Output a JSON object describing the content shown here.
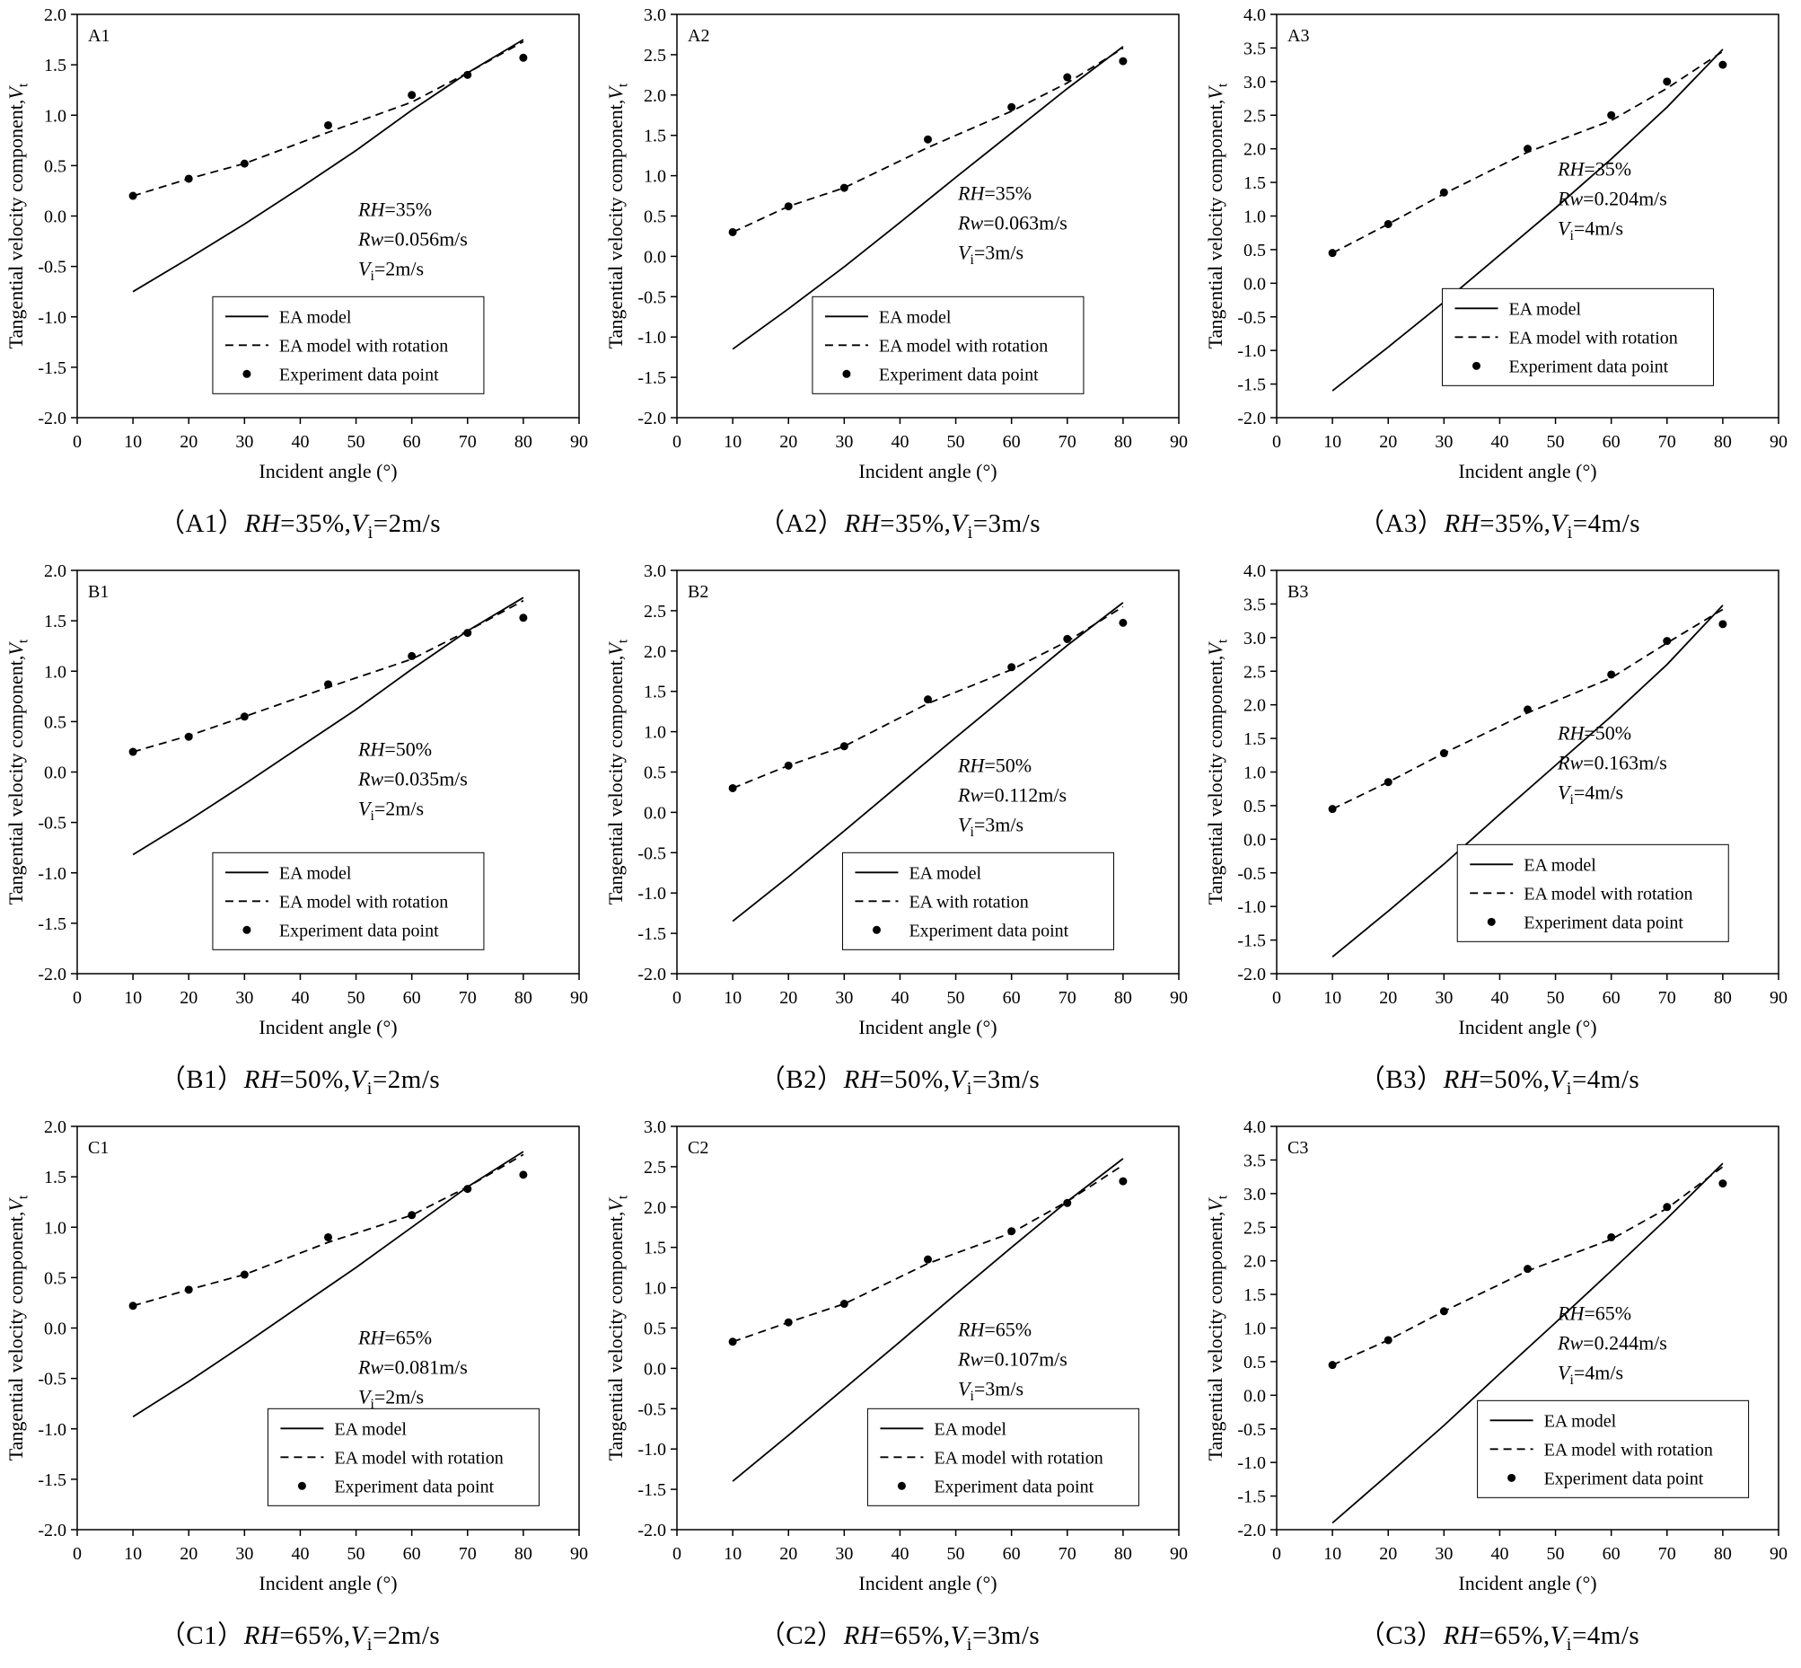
{
  "chart_data": [
    {
      "type": "line+scatter",
      "panel": "A1",
      "caption": "（A1）*RH*=35%,*V*~i~=2m/s",
      "xlabel": "Incident angle (°)",
      "ylabel": "Tangential velocity component,*V*~t~",
      "xlim": [
        0,
        90
      ],
      "xstep": 10,
      "ylim": [
        -2.0,
        2.0
      ],
      "ystep": 0.5,
      "annotation": [
        "*RH*=35%",
        "*Rw*=0.056m/s",
        "*V*~i~=2m/s"
      ],
      "ann_pos": {
        "x": 0.56,
        "y": 0.5
      },
      "legend_pos": {
        "x": 0.27,
        "y": 0.7
      },
      "legend": [
        {
          "style": "solid",
          "label": "EA model"
        },
        {
          "style": "dashed",
          "label": "EA model with rotation"
        },
        {
          "style": "dot",
          "label": "Experiment data point"
        }
      ],
      "series": [
        {
          "name": "EA model",
          "style": "solid",
          "x": [
            10,
            20,
            30,
            40,
            50,
            60,
            70,
            80
          ],
          "y": [
            -0.75,
            -0.42,
            -0.08,
            0.28,
            0.65,
            1.05,
            1.42,
            1.75
          ]
        },
        {
          "name": "EA model with rotation",
          "style": "dashed",
          "x": [
            10,
            20,
            30,
            45,
            60,
            70,
            80
          ],
          "y": [
            0.2,
            0.37,
            0.52,
            0.83,
            1.13,
            1.42,
            1.73
          ]
        },
        {
          "name": "Experiment data point",
          "style": "dot",
          "x": [
            10,
            20,
            30,
            45,
            60,
            70,
            80
          ],
          "y": [
            0.2,
            0.37,
            0.52,
            0.9,
            1.2,
            1.4,
            1.57
          ]
        }
      ]
    },
    {
      "type": "line+scatter",
      "panel": "A2",
      "caption": "（A2）*RH*=35%,*V*~i~=3m/s",
      "xlabel": "Incident angle (°)",
      "ylabel": "Tangential velocity component,*V*~t~",
      "xlim": [
        0,
        90
      ],
      "xstep": 10,
      "ylim": [
        -2.0,
        3.0
      ],
      "ystep": 0.5,
      "annotation": [
        "*RH*=35%",
        "*Rw*=0.063m/s",
        "*V*~i~=3m/s"
      ],
      "ann_pos": {
        "x": 0.56,
        "y": 0.46
      },
      "legend_pos": {
        "x": 0.27,
        "y": 0.7
      },
      "legend": [
        {
          "style": "solid",
          "label": "EA model"
        },
        {
          "style": "dashed",
          "label": "EA model with rotation"
        },
        {
          "style": "dot",
          "label": "Experiment data point"
        }
      ],
      "series": [
        {
          "name": "EA model",
          "style": "solid",
          "x": [
            10,
            20,
            30,
            40,
            50,
            60,
            70,
            80
          ],
          "y": [
            -1.15,
            -0.65,
            -0.13,
            0.42,
            0.98,
            1.53,
            2.08,
            2.6
          ]
        },
        {
          "name": "EA model with rotation",
          "style": "dashed",
          "x": [
            10,
            20,
            30,
            45,
            60,
            70,
            80
          ],
          "y": [
            0.3,
            0.62,
            0.85,
            1.35,
            1.8,
            2.15,
            2.58
          ]
        },
        {
          "name": "Experiment data point",
          "style": "dot",
          "x": [
            10,
            20,
            30,
            45,
            60,
            70,
            80
          ],
          "y": [
            0.3,
            0.62,
            0.85,
            1.45,
            1.85,
            2.22,
            2.42
          ]
        }
      ]
    },
    {
      "type": "line+scatter",
      "panel": "A3",
      "caption": "（A3）*RH*=35%,*V*~i~=4m/s",
      "xlabel": "Incident angle (°)",
      "ylabel": "Tangential velocity component,*V*~t~",
      "xlim": [
        0,
        90
      ],
      "xstep": 10,
      "ylim": [
        -2.0,
        4.0
      ],
      "ystep": 0.5,
      "annotation": [
        "*RH*=35%",
        "*Rw*=0.204m/s",
        "*V*~i~=4m/s"
      ],
      "ann_pos": {
        "x": 0.56,
        "y": 0.4
      },
      "legend_pos": {
        "x": 0.33,
        "y": 0.68
      },
      "legend": [
        {
          "style": "solid",
          "label": "EA model"
        },
        {
          "style": "dashed",
          "label": "EA model with rotation"
        },
        {
          "style": "dot",
          "label": "Experiment data point"
        }
      ],
      "series": [
        {
          "name": "EA model",
          "style": "solid",
          "x": [
            10,
            20,
            30,
            40,
            50,
            60,
            70,
            80
          ],
          "y": [
            -1.6,
            -0.95,
            -0.28,
            0.42,
            1.12,
            1.85,
            2.62,
            3.48
          ]
        },
        {
          "name": "EA model with rotation",
          "style": "dashed",
          "x": [
            10,
            20,
            30,
            45,
            60,
            70,
            80
          ],
          "y": [
            0.45,
            0.88,
            1.33,
            1.95,
            2.42,
            2.9,
            3.45
          ]
        },
        {
          "name": "Experiment data point",
          "style": "dot",
          "x": [
            10,
            20,
            30,
            45,
            60,
            70,
            80
          ],
          "y": [
            0.45,
            0.88,
            1.35,
            2.0,
            2.5,
            3.0,
            3.25
          ]
        }
      ]
    },
    {
      "type": "line+scatter",
      "panel": "B1",
      "caption": "（B1）*RH*=50%,*V*~i~=2m/s",
      "xlabel": "Incident angle (°)",
      "ylabel": "Tangential velocity component,*V*~t~",
      "xlim": [
        0,
        90
      ],
      "xstep": 10,
      "ylim": [
        -2.0,
        2.0
      ],
      "ystep": 0.5,
      "annotation": [
        "*RH*=50%",
        "*Rw*=0.035m/s",
        "*V*~i~=2m/s"
      ],
      "ann_pos": {
        "x": 0.56,
        "y": 0.46
      },
      "legend_pos": {
        "x": 0.27,
        "y": 0.7
      },
      "legend": [
        {
          "style": "solid",
          "label": "EA model"
        },
        {
          "style": "dashed",
          "label": "EA model with rotation"
        },
        {
          "style": "dot",
          "label": "Experiment data point"
        }
      ],
      "series": [
        {
          "name": "EA model",
          "style": "solid",
          "x": [
            10,
            20,
            30,
            40,
            50,
            60,
            70,
            80
          ],
          "y": [
            -0.82,
            -0.48,
            -0.12,
            0.25,
            0.62,
            1.02,
            1.4,
            1.73
          ]
        },
        {
          "name": "EA model with rotation",
          "style": "dashed",
          "x": [
            10,
            20,
            30,
            45,
            60,
            70,
            80
          ],
          "y": [
            0.2,
            0.36,
            0.55,
            0.84,
            1.12,
            1.4,
            1.7
          ]
        },
        {
          "name": "Experiment data point",
          "style": "dot",
          "x": [
            10,
            20,
            30,
            45,
            60,
            70,
            80
          ],
          "y": [
            0.2,
            0.35,
            0.55,
            0.87,
            1.15,
            1.38,
            1.53
          ]
        }
      ]
    },
    {
      "type": "line+scatter",
      "panel": "B2",
      "caption": "（B2）*RH*=50%,*V*~i~=3m/s",
      "xlabel": "Incident angle (°)",
      "ylabel": "Tangential velocity component,*V*~t~",
      "xlim": [
        0,
        90
      ],
      "xstep": 10,
      "ylim": [
        -2.0,
        3.0
      ],
      "ystep": 0.5,
      "annotation": [
        "*RH*=50%",
        "*Rw*=0.112m/s",
        "*V*~i~=3m/s"
      ],
      "ann_pos": {
        "x": 0.56,
        "y": 0.5
      },
      "legend_pos": {
        "x": 0.33,
        "y": 0.7
      },
      "legend": [
        {
          "style": "solid",
          "label": "EA model"
        },
        {
          "style": "dashed",
          "label": "EA with rotation"
        },
        {
          "style": "dot",
          "label": "Experiment data point"
        }
      ],
      "series": [
        {
          "name": "EA model",
          "style": "solid",
          "x": [
            10,
            20,
            30,
            40,
            50,
            60,
            70,
            80
          ],
          "y": [
            -1.35,
            -0.8,
            -0.23,
            0.35,
            0.93,
            1.5,
            2.07,
            2.6
          ]
        },
        {
          "name": "EA with rotation",
          "style": "dashed",
          "x": [
            10,
            20,
            30,
            45,
            60,
            70,
            80
          ],
          "y": [
            0.3,
            0.58,
            0.82,
            1.35,
            1.77,
            2.12,
            2.55
          ]
        },
        {
          "name": "Experiment data point",
          "style": "dot",
          "x": [
            10,
            20,
            30,
            45,
            60,
            70,
            80
          ],
          "y": [
            0.3,
            0.58,
            0.82,
            1.4,
            1.8,
            2.15,
            2.35
          ]
        }
      ]
    },
    {
      "type": "line+scatter",
      "panel": "B3",
      "caption": "（B3）*RH*=50%,*V*~i~=4m/s",
      "xlabel": "Incident angle (°)",
      "ylabel": "Tangential velocity component,*V*~t~",
      "xlim": [
        0,
        90
      ],
      "xstep": 10,
      "ylim": [
        -2.0,
        4.0
      ],
      "ystep": 0.5,
      "annotation": [
        "*RH*=50%",
        "*Rw*=0.163m/s",
        "*V*~i~=4m/s"
      ],
      "ann_pos": {
        "x": 0.56,
        "y": 0.42
      },
      "legend_pos": {
        "x": 0.36,
        "y": 0.68
      },
      "legend": [
        {
          "style": "solid",
          "label": "EA model"
        },
        {
          "style": "dashed",
          "label": "EA model with rotation"
        },
        {
          "style": "dot",
          "label": "Experiment data point"
        }
      ],
      "series": [
        {
          "name": "EA model",
          "style": "solid",
          "x": [
            10,
            20,
            30,
            40,
            50,
            60,
            70,
            80
          ],
          "y": [
            -1.75,
            -1.07,
            -0.37,
            0.37,
            1.1,
            1.83,
            2.6,
            3.48
          ]
        },
        {
          "name": "EA model with rotation",
          "style": "dashed",
          "x": [
            10,
            20,
            30,
            45,
            60,
            70,
            80
          ],
          "y": [
            0.45,
            0.85,
            1.28,
            1.88,
            2.4,
            2.92,
            3.42
          ]
        },
        {
          "name": "Experiment data point",
          "style": "dot",
          "x": [
            10,
            20,
            30,
            45,
            60,
            70,
            80
          ],
          "y": [
            0.45,
            0.85,
            1.28,
            1.93,
            2.45,
            2.95,
            3.2
          ]
        }
      ]
    },
    {
      "type": "line+scatter",
      "panel": "C1",
      "caption": "（C1）*RH*=65%,*V*~i~=2m/s",
      "xlabel": "Incident angle (°)",
      "ylabel": "Tangential velocity component,*V*~t~",
      "xlim": [
        0,
        90
      ],
      "xstep": 10,
      "ylim": [
        -2.0,
        2.0
      ],
      "ystep": 0.5,
      "annotation": [
        "*RH*=65%",
        "*Rw*=0.081m/s",
        "*V*~i~=2m/s"
      ],
      "ann_pos": {
        "x": 0.56,
        "y": 0.54
      },
      "legend_pos": {
        "x": 0.38,
        "y": 0.7
      },
      "legend": [
        {
          "style": "solid",
          "label": "EA model"
        },
        {
          "style": "dashed",
          "label": "EA model with rotation"
        },
        {
          "style": "dot",
          "label": "Experiment data point"
        }
      ],
      "series": [
        {
          "name": "EA model",
          "style": "solid",
          "x": [
            10,
            20,
            30,
            40,
            50,
            60,
            70,
            80
          ],
          "y": [
            -0.88,
            -0.53,
            -0.16,
            0.22,
            0.6,
            1.0,
            1.4,
            1.75
          ]
        },
        {
          "name": "EA model with rotation",
          "style": "dashed",
          "x": [
            10,
            20,
            30,
            45,
            60,
            70,
            80
          ],
          "y": [
            0.22,
            0.38,
            0.53,
            0.85,
            1.12,
            1.4,
            1.72
          ]
        },
        {
          "name": "Experiment data point",
          "style": "dot",
          "x": [
            10,
            20,
            30,
            45,
            60,
            70,
            80
          ],
          "y": [
            0.22,
            0.38,
            0.53,
            0.9,
            1.12,
            1.38,
            1.52
          ]
        }
      ]
    },
    {
      "type": "line+scatter",
      "panel": "C2",
      "caption": "（C2）*RH*=65%,*V*~i~=3m/s",
      "xlabel": "Incident angle (°)",
      "ylabel": "Tangential velocity component,*V*~t~",
      "xlim": [
        0,
        90
      ],
      "xstep": 10,
      "ylim": [
        -2.0,
        3.0
      ],
      "ystep": 0.5,
      "annotation": [
        "*RH*=65%",
        "*Rw*=0.107m/s",
        "*V*~i~=3m/s"
      ],
      "ann_pos": {
        "x": 0.56,
        "y": 0.52
      },
      "legend_pos": {
        "x": 0.38,
        "y": 0.7
      },
      "legend": [
        {
          "style": "solid",
          "label": "EA model"
        },
        {
          "style": "dashed",
          "label": "EA model with rotation"
        },
        {
          "style": "dot",
          "label": "Experiment data point"
        }
      ],
      "series": [
        {
          "name": "EA model",
          "style": "solid",
          "x": [
            10,
            20,
            30,
            40,
            50,
            60,
            70,
            80
          ],
          "y": [
            -1.4,
            -0.83,
            -0.25,
            0.33,
            0.92,
            1.5,
            2.07,
            2.6
          ]
        },
        {
          "name": "EA model with rotation",
          "style": "dashed",
          "x": [
            10,
            20,
            30,
            45,
            60,
            70,
            80
          ],
          "y": [
            0.33,
            0.57,
            0.8,
            1.3,
            1.68,
            2.07,
            2.52
          ]
        },
        {
          "name": "Experiment data point",
          "style": "dot",
          "x": [
            10,
            20,
            30,
            45,
            60,
            70,
            80
          ],
          "y": [
            0.33,
            0.57,
            0.8,
            1.35,
            1.7,
            2.05,
            2.32
          ]
        }
      ]
    },
    {
      "type": "line+scatter",
      "panel": "C3",
      "caption": "（C3）*RH*=65%,*V*~i~=4m/s",
      "xlabel": "Incident angle (°)",
      "ylabel": "Tangential velocity component,*V*~t~",
      "xlim": [
        0,
        90
      ],
      "xstep": 10,
      "ylim": [
        -2.0,
        4.0
      ],
      "ystep": 0.5,
      "annotation": [
        "*RH*=65%",
        "*Rw*=0.244m/s",
        "*V*~i~=4m/s"
      ],
      "ann_pos": {
        "x": 0.56,
        "y": 0.48
      },
      "legend_pos": {
        "x": 0.4,
        "y": 0.68
      },
      "legend": [
        {
          "style": "solid",
          "label": "EA model"
        },
        {
          "style": "dashed",
          "label": "EA model with rotation"
        },
        {
          "style": "dot",
          "label": "Experiment data point"
        }
      ],
      "series": [
        {
          "name": "EA model",
          "style": "solid",
          "x": [
            10,
            20,
            30,
            40,
            50,
            60,
            70,
            80
          ],
          "y": [
            -1.9,
            -1.18,
            -0.45,
            0.32,
            1.08,
            1.85,
            2.63,
            3.45
          ]
        },
        {
          "name": "EA model with rotation",
          "style": "dashed",
          "x": [
            10,
            20,
            30,
            45,
            60,
            70,
            80
          ],
          "y": [
            0.45,
            0.82,
            1.25,
            1.85,
            2.32,
            2.78,
            3.4
          ]
        },
        {
          "name": "Experiment data point",
          "style": "dot",
          "x": [
            10,
            20,
            30,
            45,
            60,
            70,
            80
          ],
          "y": [
            0.45,
            0.82,
            1.25,
            1.88,
            2.35,
            2.8,
            3.15
          ]
        }
      ]
    }
  ],
  "style": {
    "line_color": "#000000",
    "frame_color": "#000000",
    "background": "#ffffff"
  }
}
